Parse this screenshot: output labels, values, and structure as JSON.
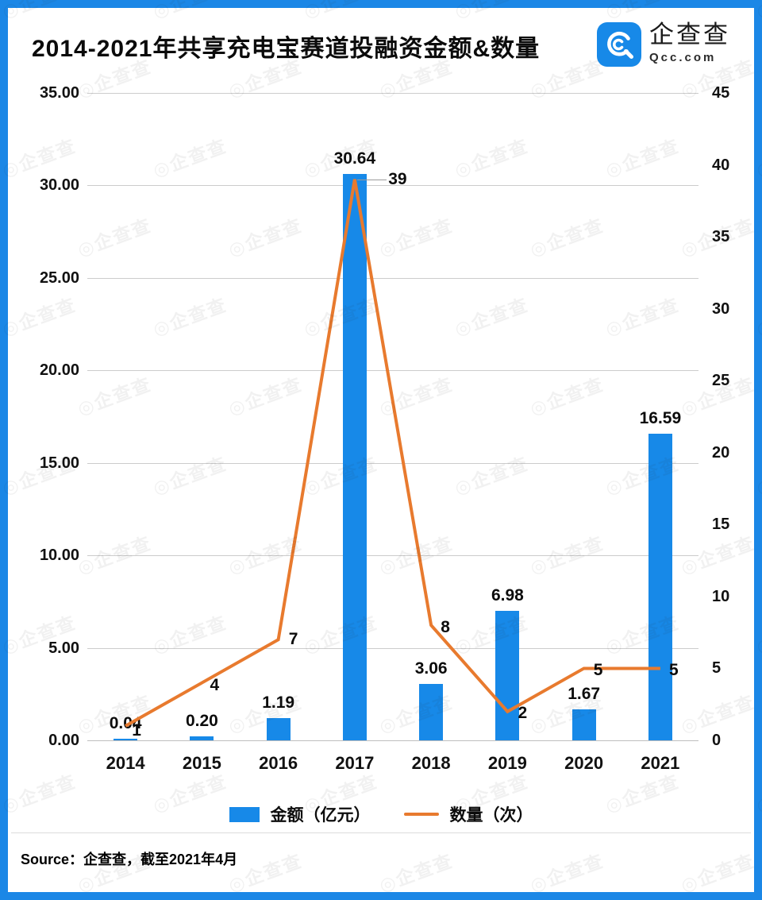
{
  "header": {
    "title": "2014-2021年共享充电宝赛道投融资金额&数量",
    "logo": {
      "name": "企查查",
      "domain": "Qcc.com",
      "icon_color": "#1789e8"
    }
  },
  "chart_data": {
    "type": "bar",
    "subtype": "bar+line dual-axis",
    "title": "2014-2021年共享充电宝赛道投融资金额&数量",
    "categories": [
      "2014",
      "2015",
      "2016",
      "2017",
      "2018",
      "2019",
      "2020",
      "2021"
    ],
    "series": [
      {
        "name": "金额（亿元）",
        "type": "bar",
        "axis": "left",
        "color": "#1789e8",
        "values": [
          0.04,
          0.2,
          1.19,
          30.64,
          3.06,
          6.98,
          1.67,
          16.59
        ],
        "labels": [
          "0.04",
          "0.20",
          "1.19",
          "30.64",
          "3.06",
          "6.98",
          "1.67",
          "16.59"
        ]
      },
      {
        "name": "数量（次）",
        "type": "line",
        "axis": "right",
        "color": "#e87a2e",
        "values": [
          1,
          4,
          7,
          39,
          8,
          2,
          5,
          5
        ],
        "labels": [
          "1",
          "4",
          "7",
          "39",
          "8",
          "2",
          "5",
          "5"
        ]
      }
    ],
    "left_axis": {
      "min": 0,
      "max": 35,
      "step": 5,
      "tick_labels": [
        "0.00",
        "5.00",
        "10.00",
        "15.00",
        "20.00",
        "25.00",
        "30.00",
        "35.00"
      ]
    },
    "right_axis": {
      "min": 0,
      "max": 45,
      "step": 5,
      "tick_labels": [
        "0",
        "5",
        "10",
        "15",
        "20",
        "25",
        "30",
        "35",
        "40",
        "45"
      ]
    },
    "grid": true,
    "legend_position": "bottom"
  },
  "legend": {
    "items": [
      {
        "label": "金额（亿元）",
        "swatch": "bar",
        "color": "#1789e8"
      },
      {
        "label": "数量（次）",
        "swatch": "line",
        "color": "#e87a2e"
      }
    ]
  },
  "footer": {
    "source": "Source：企查查，截至2021年4月"
  },
  "watermark": {
    "text": "企查查"
  },
  "colors": {
    "frame": "#1b87e6",
    "bar": "#1789e8",
    "line": "#e87a2e",
    "grid": "#cccccc"
  }
}
